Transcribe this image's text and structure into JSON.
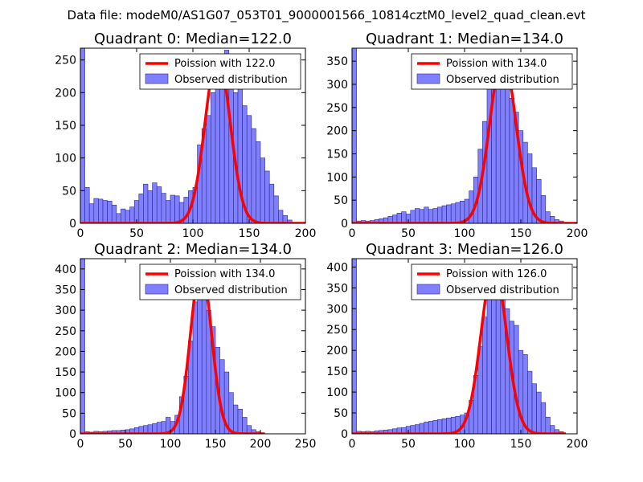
{
  "figure": {
    "suptitle": "Data file: modeM0/AS1G07_053T01_9000001566_10814cztM0_level2_quad_clean.evt"
  },
  "colors": {
    "bar_fill": "#7f7fff",
    "bar_edge": "#2a2a8a",
    "curve": "#ff0000",
    "background": "#ffffff"
  },
  "chart_data": [
    {
      "type": "bar",
      "title": "Quadrant 0: Median=122.0",
      "legend_position": "top-right",
      "xlim": [
        0,
        200
      ],
      "ylim": [
        0,
        268
      ],
      "xticks": [
        0,
        50,
        100,
        150,
        200
      ],
      "yticks": [
        0,
        50,
        100,
        150,
        200,
        250
      ],
      "bin_width": 4,
      "bin_starts": [
        0,
        4,
        8,
        12,
        16,
        20,
        24,
        28,
        32,
        36,
        40,
        44,
        48,
        52,
        56,
        60,
        64,
        68,
        72,
        76,
        80,
        84,
        88,
        92,
        96,
        100,
        104,
        108,
        112,
        116,
        120,
        124,
        128,
        132,
        136,
        140,
        144,
        148,
        152,
        156,
        160,
        164,
        168,
        172,
        176,
        180,
        184
      ],
      "counts": [
        268,
        55,
        30,
        38,
        37,
        35,
        34,
        28,
        15,
        22,
        20,
        25,
        35,
        45,
        60,
        50,
        62,
        56,
        46,
        35,
        43,
        42,
        32,
        40,
        50,
        55,
        120,
        145,
        165,
        200,
        240,
        250,
        265,
        240,
        200,
        210,
        180,
        165,
        145,
        125,
        100,
        80,
        60,
        42,
        20,
        12,
        5
      ],
      "curve_label": "Poission with 122.0",
      "hist_label": "Observed distribution",
      "curve": {
        "mean": 122,
        "peak": 258,
        "range": [
          0,
          200
        ]
      }
    },
    {
      "type": "bar",
      "title": "Quadrant 1: Median=134.0",
      "legend_position": "top-right",
      "xlim": [
        0,
        200
      ],
      "ylim": [
        0,
        378
      ],
      "xticks": [
        0,
        50,
        100,
        150,
        200
      ],
      "yticks": [
        0,
        50,
        100,
        150,
        200,
        250,
        300,
        350
      ],
      "bin_width": 4,
      "bin_starts": [
        0,
        4,
        8,
        12,
        16,
        20,
        24,
        28,
        32,
        36,
        40,
        44,
        48,
        52,
        56,
        60,
        64,
        68,
        72,
        76,
        80,
        84,
        88,
        92,
        96,
        100,
        104,
        108,
        112,
        116,
        120,
        124,
        128,
        132,
        136,
        140,
        144,
        148,
        152,
        156,
        160,
        164,
        168,
        172,
        176,
        180,
        184
      ],
      "counts": [
        378,
        5,
        6,
        5,
        6,
        8,
        10,
        12,
        15,
        18,
        22,
        25,
        20,
        28,
        32,
        30,
        35,
        30,
        32,
        35,
        38,
        40,
        42,
        45,
        48,
        52,
        70,
        100,
        160,
        220,
        305,
        330,
        345,
        320,
        290,
        270,
        240,
        200,
        175,
        150,
        120,
        95,
        60,
        25,
        15,
        8,
        5
      ],
      "curve_label": "Poission with 134.0",
      "hist_label": "Observed distribution",
      "curve": {
        "mean": 134,
        "peak": 360,
        "range": [
          0,
          200
        ]
      }
    },
    {
      "type": "bar",
      "title": "Quadrant 2: Median=134.0",
      "legend_position": "top-right",
      "xlim": [
        0,
        250
      ],
      "ylim": [
        0,
        425
      ],
      "xticks": [
        0,
        50,
        100,
        150,
        200,
        250
      ],
      "yticks": [
        0,
        50,
        100,
        150,
        200,
        250,
        300,
        350,
        400
      ],
      "bin_width": 5,
      "bin_starts": [
        0,
        5,
        10,
        15,
        20,
        25,
        30,
        35,
        40,
        45,
        50,
        55,
        60,
        65,
        70,
        75,
        80,
        85,
        90,
        95,
        100,
        105,
        110,
        115,
        120,
        125,
        130,
        135,
        140,
        145,
        150,
        155,
        160,
        165,
        170,
        175,
        180,
        185,
        190,
        195
      ],
      "counts": [
        425,
        5,
        4,
        6,
        5,
        6,
        7,
        8,
        8,
        9,
        10,
        12,
        15,
        18,
        20,
        22,
        25,
        28,
        30,
        40,
        30,
        45,
        90,
        140,
        225,
        320,
        330,
        340,
        300,
        260,
        210,
        180,
        150,
        100,
        70,
        60,
        40,
        20,
        10,
        5
      ],
      "curve_label": "Poission with 134.0",
      "hist_label": "Observed distribution",
      "curve": {
        "mean": 134,
        "peak": 405,
        "range": [
          0,
          205
        ]
      }
    },
    {
      "type": "bar",
      "title": "Quadrant 3: Median=126.0",
      "legend_position": "top-right",
      "xlim": [
        0,
        200
      ],
      "ylim": [
        0,
        420
      ],
      "xticks": [
        0,
        50,
        100,
        150,
        200
      ],
      "yticks": [
        0,
        50,
        100,
        150,
        200,
        250,
        300,
        350,
        400
      ],
      "bin_width": 4,
      "bin_starts": [
        0,
        4,
        8,
        12,
        16,
        20,
        24,
        28,
        32,
        36,
        40,
        44,
        48,
        52,
        56,
        60,
        64,
        68,
        72,
        76,
        80,
        84,
        88,
        92,
        96,
        100,
        104,
        108,
        112,
        116,
        120,
        124,
        128,
        132,
        136,
        140,
        144,
        148,
        152,
        156,
        160,
        164,
        168,
        172,
        176,
        180,
        184
      ],
      "counts": [
        420,
        6,
        5,
        6,
        5,
        7,
        8,
        9,
        10,
        12,
        14,
        15,
        18,
        20,
        22,
        25,
        28,
        30,
        32,
        34,
        36,
        38,
        40,
        42,
        45,
        50,
        80,
        140,
        210,
        280,
        330,
        350,
        365,
        350,
        300,
        270,
        260,
        200,
        190,
        150,
        120,
        100,
        75,
        40,
        20,
        10,
        5
      ],
      "curve_label": "Poission with 126.0",
      "hist_label": "Observed distribution",
      "curve": {
        "mean": 126,
        "peak": 403,
        "range": [
          0,
          190
        ]
      }
    }
  ]
}
